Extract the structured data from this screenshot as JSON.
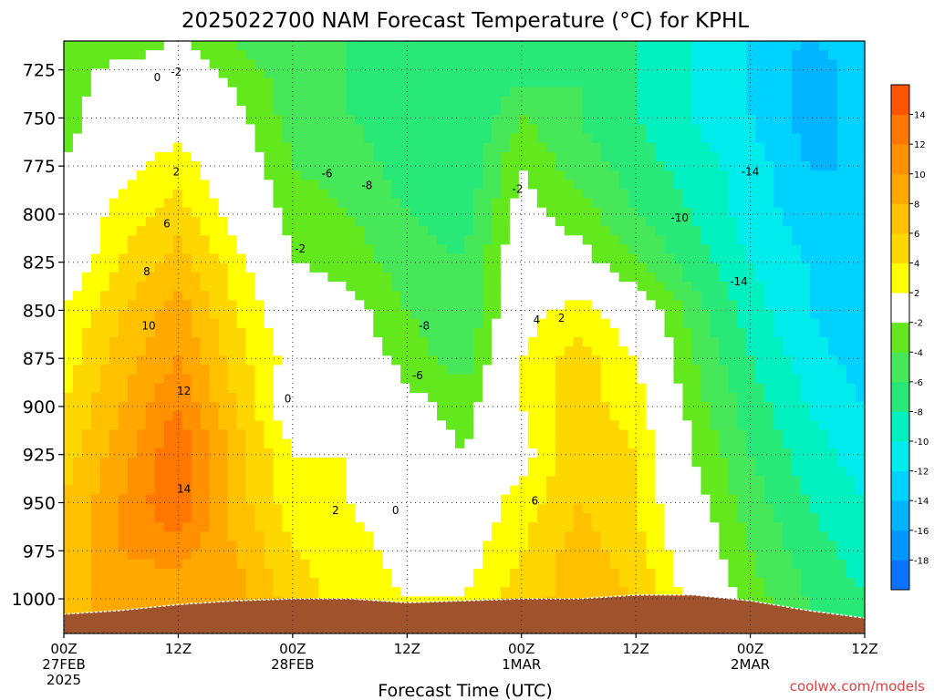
{
  "chart_data": {
    "type": "heatmap",
    "title": "2025022700 NAM Forecast Temperature (°C) for KPHL",
    "xlabel": "Forecast Time (UTC)",
    "ylabel": "",
    "x_hours": [
      0,
      6,
      12,
      18,
      24,
      30,
      36,
      42,
      48,
      54,
      60,
      66,
      72,
      78,
      84
    ],
    "x_tick_labels": [
      {
        "hour": 0,
        "lines": [
          "00Z",
          "27FEB",
          "2025"
        ]
      },
      {
        "hour": 12,
        "lines": [
          "12Z"
        ]
      },
      {
        "hour": 24,
        "lines": [
          "00Z",
          "28FEB"
        ]
      },
      {
        "hour": 36,
        "lines": [
          "12Z"
        ]
      },
      {
        "hour": 48,
        "lines": [
          "00Z",
          "1MAR"
        ]
      },
      {
        "hour": 60,
        "lines": [
          "12Z"
        ]
      },
      {
        "hour": 72,
        "lines": [
          "00Z",
          "2MAR"
        ]
      },
      {
        "hour": 84,
        "lines": [
          "12Z"
        ]
      }
    ],
    "y_ticks": [
      725,
      750,
      775,
      800,
      825,
      850,
      875,
      900,
      925,
      950,
      975,
      1000
    ],
    "ylim": [
      1018,
      710
    ],
    "xlim": [
      0,
      84
    ],
    "y_levels": [
      710,
      725,
      750,
      775,
      800,
      825,
      850,
      875,
      900,
      925,
      950,
      975,
      1000,
      1018
    ],
    "temperature_grid": [
      [
        -4,
        -4,
        -2,
        -4,
        -6,
        -6,
        -8,
        -8,
        -8,
        -6,
        -8,
        -10,
        -12,
        -14,
        -13
      ],
      [
        -3,
        -1,
        0,
        -3,
        -5,
        -6,
        -7,
        -8,
        -7,
        -6,
        -8,
        -10,
        -12,
        -15,
        -13
      ],
      [
        -3,
        0,
        1,
        -1,
        -5,
        -6,
        -7,
        -8,
        -4,
        -6,
        -8,
        -10,
        -12,
        -15,
        -13
      ],
      [
        -2,
        1,
        3,
        0,
        -4,
        -5,
        -7,
        -8,
        -2,
        -5,
        -7,
        -9,
        -11,
        -14,
        -14
      ],
      [
        -1,
        3,
        5,
        1,
        -3,
        -4,
        -6,
        -7,
        -1,
        -3,
        -6,
        -8,
        -11,
        -13,
        -14
      ],
      [
        0,
        4,
        7,
        3,
        -2,
        -3,
        -5,
        -6,
        0,
        -1,
        -4,
        -7,
        -10,
        -12,
        -14
      ],
      [
        2,
        6,
        9,
        4,
        0,
        -1,
        -4,
        -6,
        1,
        3,
        0,
        -5,
        -9,
        -12,
        -14
      ],
      [
        3,
        7,
        10,
        5,
        1,
        0,
        -3,
        -5,
        2,
        5,
        2,
        -4,
        -8,
        -11,
        -13
      ],
      [
        4,
        8,
        12,
        6,
        0,
        1,
        -1,
        -3,
        2,
        5,
        3,
        -3,
        -7,
        -10,
        -12
      ],
      [
        5,
        9,
        14,
        7,
        2,
        2,
        0,
        -2,
        1,
        6,
        4,
        -2,
        -6,
        -9,
        -11
      ],
      [
        6,
        10,
        14,
        7,
        3,
        2,
        0,
        0,
        3,
        6,
        4,
        -1,
        -5,
        -8,
        -10
      ],
      [
        6,
        10,
        11,
        8,
        4,
        3,
        1,
        1,
        4,
        7,
        5,
        0,
        -4,
        -7,
        -9
      ],
      [
        7,
        9,
        8,
        9,
        5,
        3,
        2,
        2,
        5,
        7,
        6,
        1,
        -3,
        -6,
        -8
      ],
      [
        7,
        9,
        8,
        9,
        5,
        3,
        2,
        2,
        5,
        7,
        6,
        1,
        -3,
        -6,
        -8
      ]
    ],
    "terrain_pressure": [
      1008,
      1006,
      1003,
      1001,
      1000,
      1000,
      1002,
      1001,
      1000,
      1000,
      998,
      998,
      1001,
      1006,
      1010
    ],
    "terrain_color": "#a0522d",
    "color_scale": {
      "bounds": [
        -20,
        -18,
        -16,
        -14,
        -12,
        -10,
        -8,
        -6,
        -4,
        -2,
        2,
        4,
        6,
        8,
        10,
        12,
        14,
        16
      ],
      "colors": [
        "#0b73ff",
        "#0096ff",
        "#00b4ff",
        "#00d2ff",
        "#00ecec",
        "#00f0c0",
        "#28e878",
        "#46e85a",
        "#63e81e",
        "#ffffff",
        "#ffff00",
        "#ffd700",
        "#ffc000",
        "#ffa800",
        "#ff9000",
        "#ff7700",
        "#ff5500"
      ],
      "tick_labels": [
        "-18",
        "-16",
        "-14",
        "-12",
        "-10",
        "-8",
        "-6",
        "-4",
        "-2",
        "2",
        "4",
        "6",
        "8",
        "10",
        "12",
        "14"
      ]
    },
    "contour_labels": [
      {
        "text": "0",
        "hour": 9.8,
        "p": 729
      },
      {
        "text": "-2",
        "hour": 11.8,
        "p": 726
      },
      {
        "text": "2",
        "hour": 11.8,
        "p": 778
      },
      {
        "text": "6",
        "hour": 10.8,
        "p": 805
      },
      {
        "text": "8",
        "hour": 8.7,
        "p": 830
      },
      {
        "text": "10",
        "hour": 8.9,
        "p": 858
      },
      {
        "text": "12",
        "hour": 12.6,
        "p": 892
      },
      {
        "text": "14",
        "hour": 12.6,
        "p": 943
      },
      {
        "text": "0",
        "hour": 23.5,
        "p": 896
      },
      {
        "text": "-2",
        "hour": 24.8,
        "p": 818
      },
      {
        "text": "-6",
        "hour": 27.6,
        "p": 779
      },
      {
        "text": "-8",
        "hour": 31.8,
        "p": 785
      },
      {
        "text": "2",
        "hour": 28.5,
        "p": 954
      },
      {
        "text": "0",
        "hour": 34.8,
        "p": 954
      },
      {
        "text": "-8",
        "hour": 37.8,
        "p": 858
      },
      {
        "text": "-6",
        "hour": 37.1,
        "p": 884
      },
      {
        "text": "-2",
        "hour": 47.6,
        "p": 787
      },
      {
        "text": "4",
        "hour": 49.6,
        "p": 855
      },
      {
        "text": "2",
        "hour": 52.2,
        "p": 854
      },
      {
        "text": "6",
        "hour": 49.4,
        "p": 949
      },
      {
        "text": "-10",
        "hour": 64.6,
        "p": 802
      },
      {
        "text": "-14",
        "hour": 72.0,
        "p": 778
      },
      {
        "text": "-14",
        "hour": 70.8,
        "p": 835
      }
    ]
  },
  "credit": "coolwx.com/models"
}
